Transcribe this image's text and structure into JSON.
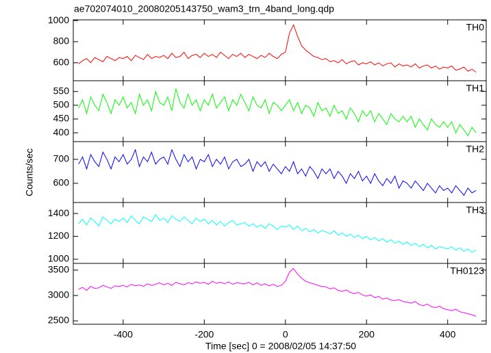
{
  "chart_data": [
    {
      "type": "line",
      "title": "ae702074010_20080205143750_wam3_trn_4band_long.qdp",
      "x": [
        -510,
        -500,
        -490,
        -480,
        -470,
        -460,
        -450,
        -440,
        -430,
        -420,
        -410,
        -400,
        -390,
        -380,
        -370,
        -360,
        -350,
        -340,
        -330,
        -320,
        -310,
        -300,
        -290,
        -280,
        -270,
        -260,
        -250,
        -240,
        -230,
        -220,
        -210,
        -200,
        -190,
        -180,
        -170,
        -160,
        -150,
        -140,
        -130,
        -120,
        -110,
        -100,
        -90,
        -80,
        -70,
        -60,
        -50,
        -40,
        -30,
        -20,
        -10,
        0,
        10,
        20,
        30,
        40,
        50,
        60,
        70,
        80,
        90,
        100,
        110,
        120,
        130,
        140,
        150,
        160,
        170,
        180,
        190,
        200,
        210,
        220,
        230,
        240,
        250,
        260,
        270,
        280,
        290,
        300,
        310,
        320,
        330,
        340,
        350,
        360,
        370,
        380,
        390,
        400,
        410,
        420,
        430,
        440,
        450,
        460,
        470
      ],
      "ylim": [
        430,
        1007
      ],
      "yticks": [
        600,
        800,
        1000
      ],
      "series": [
        {
          "name": "TH0",
          "color": "#ff0000",
          "values": [
            590,
            620,
            640,
            600,
            650,
            630,
            610,
            660,
            640,
            620,
            650,
            640,
            660,
            620,
            670,
            650,
            630,
            680,
            640,
            660,
            650,
            670,
            640,
            690,
            650,
            660,
            700,
            640,
            670,
            680,
            650,
            690,
            660,
            680,
            650,
            700,
            670,
            640,
            680,
            660,
            690,
            650,
            680,
            660,
            640,
            670,
            650,
            690,
            660,
            640,
            680,
            700,
            880,
            960,
            850,
            760,
            720,
            690,
            660,
            650,
            630,
            640,
            610,
            620,
            600,
            630,
            590,
            610,
            620,
            580,
            600,
            590,
            610,
            580,
            600,
            570,
            590,
            600,
            560,
            590,
            570,
            580,
            560,
            590,
            550,
            570,
            580,
            550,
            570,
            540,
            560,
            550,
            570,
            530,
            540,
            560,
            520,
            540,
            510
          ]
        }
      ]
    },
    {
      "type": "line",
      "x": [
        -510,
        -500,
        -490,
        -480,
        -470,
        -460,
        -450,
        -440,
        -430,
        -420,
        -410,
        -400,
        -390,
        -380,
        -370,
        -360,
        -350,
        -340,
        -330,
        -320,
        -310,
        -300,
        -290,
        -280,
        -270,
        -260,
        -250,
        -240,
        -230,
        -220,
        -210,
        -200,
        -190,
        -180,
        -170,
        -160,
        -150,
        -140,
        -130,
        -120,
        -110,
        -100,
        -90,
        -80,
        -70,
        -60,
        -50,
        -40,
        -30,
        -20,
        -10,
        0,
        10,
        20,
        30,
        40,
        50,
        60,
        70,
        80,
        90,
        100,
        110,
        120,
        130,
        140,
        150,
        160,
        170,
        180,
        190,
        200,
        210,
        220,
        230,
        240,
        250,
        260,
        270,
        280,
        290,
        300,
        310,
        320,
        330,
        340,
        350,
        360,
        370,
        380,
        390,
        400,
        410,
        420,
        430,
        440,
        450,
        460,
        470
      ],
      "ylim": [
        368,
        589
      ],
      "yticks": [
        400,
        450,
        500,
        550
      ],
      "series": [
        {
          "name": "TH1",
          "color": "#00ff00",
          "values": [
            490,
            520,
            470,
            530,
            500,
            480,
            540,
            510,
            470,
            520,
            500,
            530,
            490,
            510,
            470,
            540,
            500,
            520,
            480,
            550,
            510,
            500,
            530,
            480,
            560,
            510,
            490,
            540,
            500,
            520,
            480,
            520,
            500,
            540,
            490,
            510,
            530,
            480,
            520,
            500,
            540,
            510,
            480,
            530,
            500,
            490,
            520,
            470,
            510,
            500,
            480,
            500,
            520,
            480,
            510,
            470,
            500,
            490,
            460,
            510,
            480,
            490,
            460,
            500,
            470,
            480,
            450,
            490,
            470,
            440,
            480,
            460,
            480,
            440,
            470,
            450,
            430,
            470,
            450,
            440,
            460,
            440,
            460,
            420,
            450,
            430,
            410,
            450,
            430,
            420,
            440,
            420,
            440,
            400,
            430,
            410,
            390,
            420,
            400
          ]
        }
      ]
    },
    {
      "type": "line",
      "ylabel": "Counts/sec",
      "x": [
        -510,
        -500,
        -490,
        -480,
        -470,
        -460,
        -450,
        -440,
        -430,
        -420,
        -410,
        -400,
        -390,
        -380,
        -370,
        -360,
        -350,
        -340,
        -330,
        -320,
        -310,
        -300,
        -290,
        -280,
        -270,
        -260,
        -250,
        -240,
        -230,
        -220,
        -210,
        -200,
        -190,
        -180,
        -170,
        -160,
        -150,
        -140,
        -130,
        -120,
        -110,
        -100,
        -90,
        -80,
        -70,
        -60,
        -50,
        -40,
        -30,
        -20,
        -10,
        0,
        10,
        20,
        30,
        40,
        50,
        60,
        70,
        80,
        90,
        100,
        110,
        120,
        130,
        140,
        150,
        160,
        170,
        180,
        190,
        200,
        210,
        220,
        230,
        240,
        250,
        260,
        270,
        280,
        290,
        300,
        310,
        320,
        330,
        340,
        350,
        360,
        370,
        380,
        390,
        400,
        410,
        420,
        430,
        440,
        450,
        460,
        470
      ],
      "ylim": [
        520,
        774
      ],
      "yticks": [
        600,
        700
      ],
      "series": [
        {
          "name": "TH2",
          "color": "#0000ff",
          "values": [
            680,
            710,
            660,
            720,
            690,
            670,
            730,
            700,
            660,
            710,
            690,
            720,
            680,
            700,
            740,
            670,
            710,
            690,
            730,
            680,
            700,
            710,
            680,
            740,
            700,
            670,
            720,
            690,
            710,
            660,
            700,
            690,
            720,
            670,
            700,
            680,
            710,
            660,
            690,
            700,
            670,
            680,
            700,
            650,
            690,
            670,
            690,
            650,
            680,
            660,
            640,
            670,
            650,
            690,
            640,
            660,
            630,
            670,
            650,
            620,
            660,
            640,
            660,
            620,
            650,
            630,
            600,
            640,
            620,
            650,
            610,
            630,
            600,
            640,
            610,
            590,
            620,
            600,
            630,
            580,
            610,
            600,
            580,
            610,
            590,
            570,
            600,
            580,
            560,
            590,
            570,
            580,
            560,
            590,
            570,
            550,
            580,
            560,
            570
          ]
        }
      ]
    },
    {
      "type": "line",
      "x": [
        -510,
        -500,
        -490,
        -480,
        -470,
        -460,
        -450,
        -440,
        -430,
        -420,
        -410,
        -400,
        -390,
        -380,
        -370,
        -360,
        -350,
        -340,
        -330,
        -320,
        -310,
        -300,
        -290,
        -280,
        -270,
        -260,
        -250,
        -240,
        -230,
        -220,
        -210,
        -200,
        -190,
        -180,
        -170,
        -160,
        -150,
        -140,
        -130,
        -120,
        -110,
        -100,
        -90,
        -80,
        -70,
        -60,
        -50,
        -40,
        -30,
        -20,
        -10,
        0,
        10,
        20,
        30,
        40,
        50,
        60,
        70,
        80,
        90,
        100,
        110,
        120,
        130,
        140,
        150,
        160,
        170,
        180,
        190,
        200,
        210,
        220,
        230,
        240,
        250,
        260,
        270,
        280,
        290,
        300,
        310,
        320,
        330,
        340,
        350,
        360,
        370,
        380,
        390,
        400,
        410,
        420,
        430,
        440,
        450,
        460,
        470
      ],
      "ylim": [
        964,
        1496
      ],
      "yticks": [
        1000,
        1200,
        1400
      ],
      "series": [
        {
          "name": "TH3",
          "color": "#00ffff",
          "values": [
            1310,
            1350,
            1300,
            1360,
            1330,
            1290,
            1370,
            1340,
            1310,
            1350,
            1330,
            1360,
            1320,
            1380,
            1340,
            1310,
            1370,
            1350,
            1330,
            1390,
            1340,
            1360,
            1320,
            1380,
            1350,
            1330,
            1370,
            1340,
            1310,
            1360,
            1330,
            1350,
            1310,
            1340,
            1300,
            1330,
            1290,
            1320,
            1340,
            1300,
            1310,
            1320,
            1290,
            1310,
            1280,
            1300,
            1270,
            1310,
            1290,
            1260,
            1290,
            1280,
            1300,
            1260,
            1290,
            1250,
            1270,
            1240,
            1260,
            1230,
            1250,
            1240,
            1220,
            1250,
            1210,
            1230,
            1200,
            1220,
            1190,
            1210,
            1180,
            1200,
            1170,
            1190,
            1160,
            1180,
            1150,
            1170,
            1140,
            1160,
            1130,
            1150,
            1120,
            1140,
            1110,
            1130,
            1100,
            1120,
            1090,
            1110,
            1100,
            1090,
            1110,
            1080,
            1100,
            1070,
            1090,
            1060,
            1080
          ]
        }
      ]
    },
    {
      "type": "line",
      "xlabel": "Time [sec] 0 = 2008/02/05 14:37:50",
      "x": [
        -510,
        -500,
        -490,
        -480,
        -470,
        -460,
        -450,
        -440,
        -430,
        -420,
        -410,
        -400,
        -390,
        -380,
        -370,
        -360,
        -350,
        -340,
        -330,
        -320,
        -310,
        -300,
        -290,
        -280,
        -270,
        -260,
        -250,
        -240,
        -230,
        -220,
        -210,
        -200,
        -190,
        -180,
        -170,
        -160,
        -150,
        -140,
        -130,
        -120,
        -110,
        -100,
        -90,
        -80,
        -70,
        -60,
        -50,
        -40,
        -30,
        -20,
        -10,
        0,
        10,
        20,
        30,
        40,
        50,
        60,
        70,
        80,
        90,
        100,
        110,
        120,
        130,
        140,
        150,
        160,
        170,
        180,
        190,
        200,
        210,
        220,
        230,
        240,
        250,
        260,
        270,
        280,
        290,
        300,
        310,
        320,
        330,
        340,
        350,
        360,
        370,
        380,
        390,
        400,
        410,
        420,
        430,
        440,
        450,
        460,
        470
      ],
      "xlim": [
        -523,
        495
      ],
      "xticks": [
        -400,
        -200,
        0,
        200,
        400
      ],
      "ylim": [
        2433,
        3633
      ],
      "yticks": [
        2500,
        3000,
        3500
      ],
      "series": [
        {
          "name": "TH0123",
          "color": "#ff00ff",
          "values": [
            3120,
            3160,
            3100,
            3180,
            3140,
            3150,
            3200,
            3170,
            3140,
            3190,
            3180,
            3200,
            3170,
            3220,
            3190,
            3210,
            3180,
            3230,
            3200,
            3220,
            3250,
            3210,
            3240,
            3200,
            3260,
            3230,
            3210,
            3250,
            3230,
            3270,
            3240,
            3260,
            3220,
            3280,
            3240,
            3260,
            3230,
            3270,
            3220,
            3250,
            3240,
            3230,
            3260,
            3210,
            3250,
            3200,
            3230,
            3190,
            3220,
            3180,
            3200,
            3280,
            3460,
            3530,
            3420,
            3340,
            3280,
            3250,
            3230,
            3200,
            3180,
            3170,
            3130,
            3150,
            3100,
            3080,
            3110,
            3060,
            3040,
            3060,
            3010,
            2990,
            3010,
            2960,
            2980,
            2930,
            2950,
            2910,
            2900,
            2920,
            2880,
            2870,
            2850,
            2880,
            2820,
            2800,
            2830,
            2780,
            2760,
            2790,
            2740,
            2720,
            2700,
            2730,
            2680,
            2660,
            2640,
            2620,
            2590
          ]
        }
      ]
    }
  ]
}
